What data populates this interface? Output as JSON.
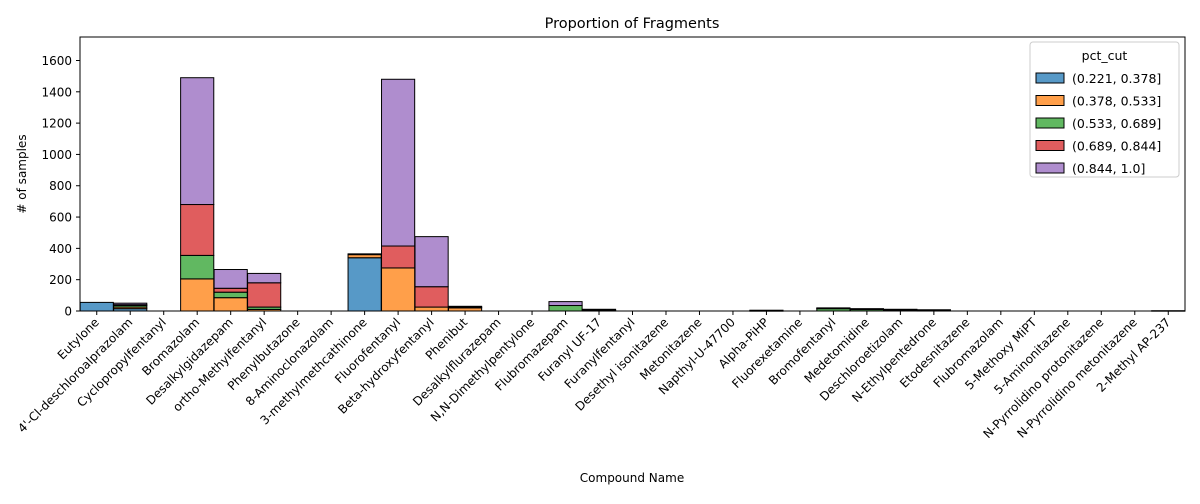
{
  "chart_data": {
    "type": "bar",
    "stacked": true,
    "title": "Proportion of Fragments",
    "xlabel": "Compound Name",
    "ylabel": "# of samples",
    "ylim": [
      0,
      1750
    ],
    "yticks": [
      0,
      200,
      400,
      600,
      800,
      1000,
      1200,
      1400,
      1600
    ],
    "grid": false,
    "legend": {
      "title": "pct_cut",
      "placement": "top-right"
    },
    "categories": [
      "Eutylone",
      "4'-Cl-deschloroalprazolam",
      "Cyclopropylfentanyl",
      "Bromazolam",
      "Desalkylgidazepam",
      "ortho-Methylfentanyl",
      "Phenylbutazone",
      "8-Aminoclonazolam",
      "3-methylmethcathinone",
      "Fluorofentanyl",
      "Beta-hydroxyfentanyl",
      "Phenibut",
      "Desalkylflurazepam",
      "N,N-Dimethylpentylone",
      "Flubromazepam",
      "Furanyl UF-17",
      "Furanylfentanyl",
      "Desethyl isonitazene",
      "Metonitazene",
      "Napthyl-U-47700",
      "Alpha-PiHP",
      "Fluorexetamine",
      "Bromofentanyl",
      "Medetomidine",
      "Deschloroetizolam",
      "N-Ethylpentedrone",
      "Etodesnitazene",
      "Flubromazolam",
      "5-Methoxy MiPT",
      "5-Aminonitazene",
      "N-Pyrrolidino protonitazene",
      "N-Pyrrolidino metonitazene",
      "2-Methyl AP-237"
    ],
    "series": [
      {
        "name": "(0.221, 0.378]",
        "color": "#1f77b4",
        "values": [
          55,
          15,
          0,
          0,
          0,
          0,
          0,
          0,
          340,
          0,
          0,
          0,
          0,
          0,
          0,
          0,
          0,
          0,
          0,
          0,
          0,
          0,
          0,
          0,
          0,
          0,
          0,
          0,
          0,
          0,
          0,
          0,
          0
        ]
      },
      {
        "name": "(0.378, 0.533]",
        "color": "#ff7f0e",
        "values": [
          0,
          10,
          0,
          205,
          85,
          10,
          0,
          0,
          20,
          275,
          25,
          20,
          0,
          0,
          0,
          0,
          0,
          0,
          0,
          0,
          0,
          0,
          0,
          0,
          0,
          0,
          0,
          0,
          0,
          0,
          0,
          0,
          0
        ]
      },
      {
        "name": "(0.533, 0.689]",
        "color": "#2ca02c",
        "values": [
          0,
          10,
          0,
          150,
          35,
          15,
          0,
          0,
          0,
          0,
          0,
          0,
          0,
          0,
          35,
          3,
          0,
          0,
          0,
          0,
          0,
          0,
          15,
          10,
          5,
          3,
          0,
          0,
          0,
          0,
          0,
          0,
          0
        ]
      },
      {
        "name": "(0.689, 0.844]",
        "color": "#d62728",
        "values": [
          0,
          5,
          0,
          325,
          25,
          155,
          0,
          0,
          0,
          140,
          130,
          5,
          0,
          0,
          0,
          3,
          0,
          0,
          0,
          0,
          2,
          0,
          3,
          2,
          3,
          2,
          0,
          0,
          0,
          0,
          0,
          0,
          0
        ]
      },
      {
        "name": "(0.844, 1.0]",
        "color": "#9467bd",
        "values": [
          0,
          10,
          0,
          810,
          120,
          60,
          0,
          0,
          5,
          1065,
          320,
          5,
          0,
          0,
          25,
          5,
          0,
          0,
          0,
          0,
          3,
          0,
          2,
          3,
          3,
          3,
          0,
          0,
          0,
          0,
          0,
          0,
          2
        ]
      }
    ]
  }
}
